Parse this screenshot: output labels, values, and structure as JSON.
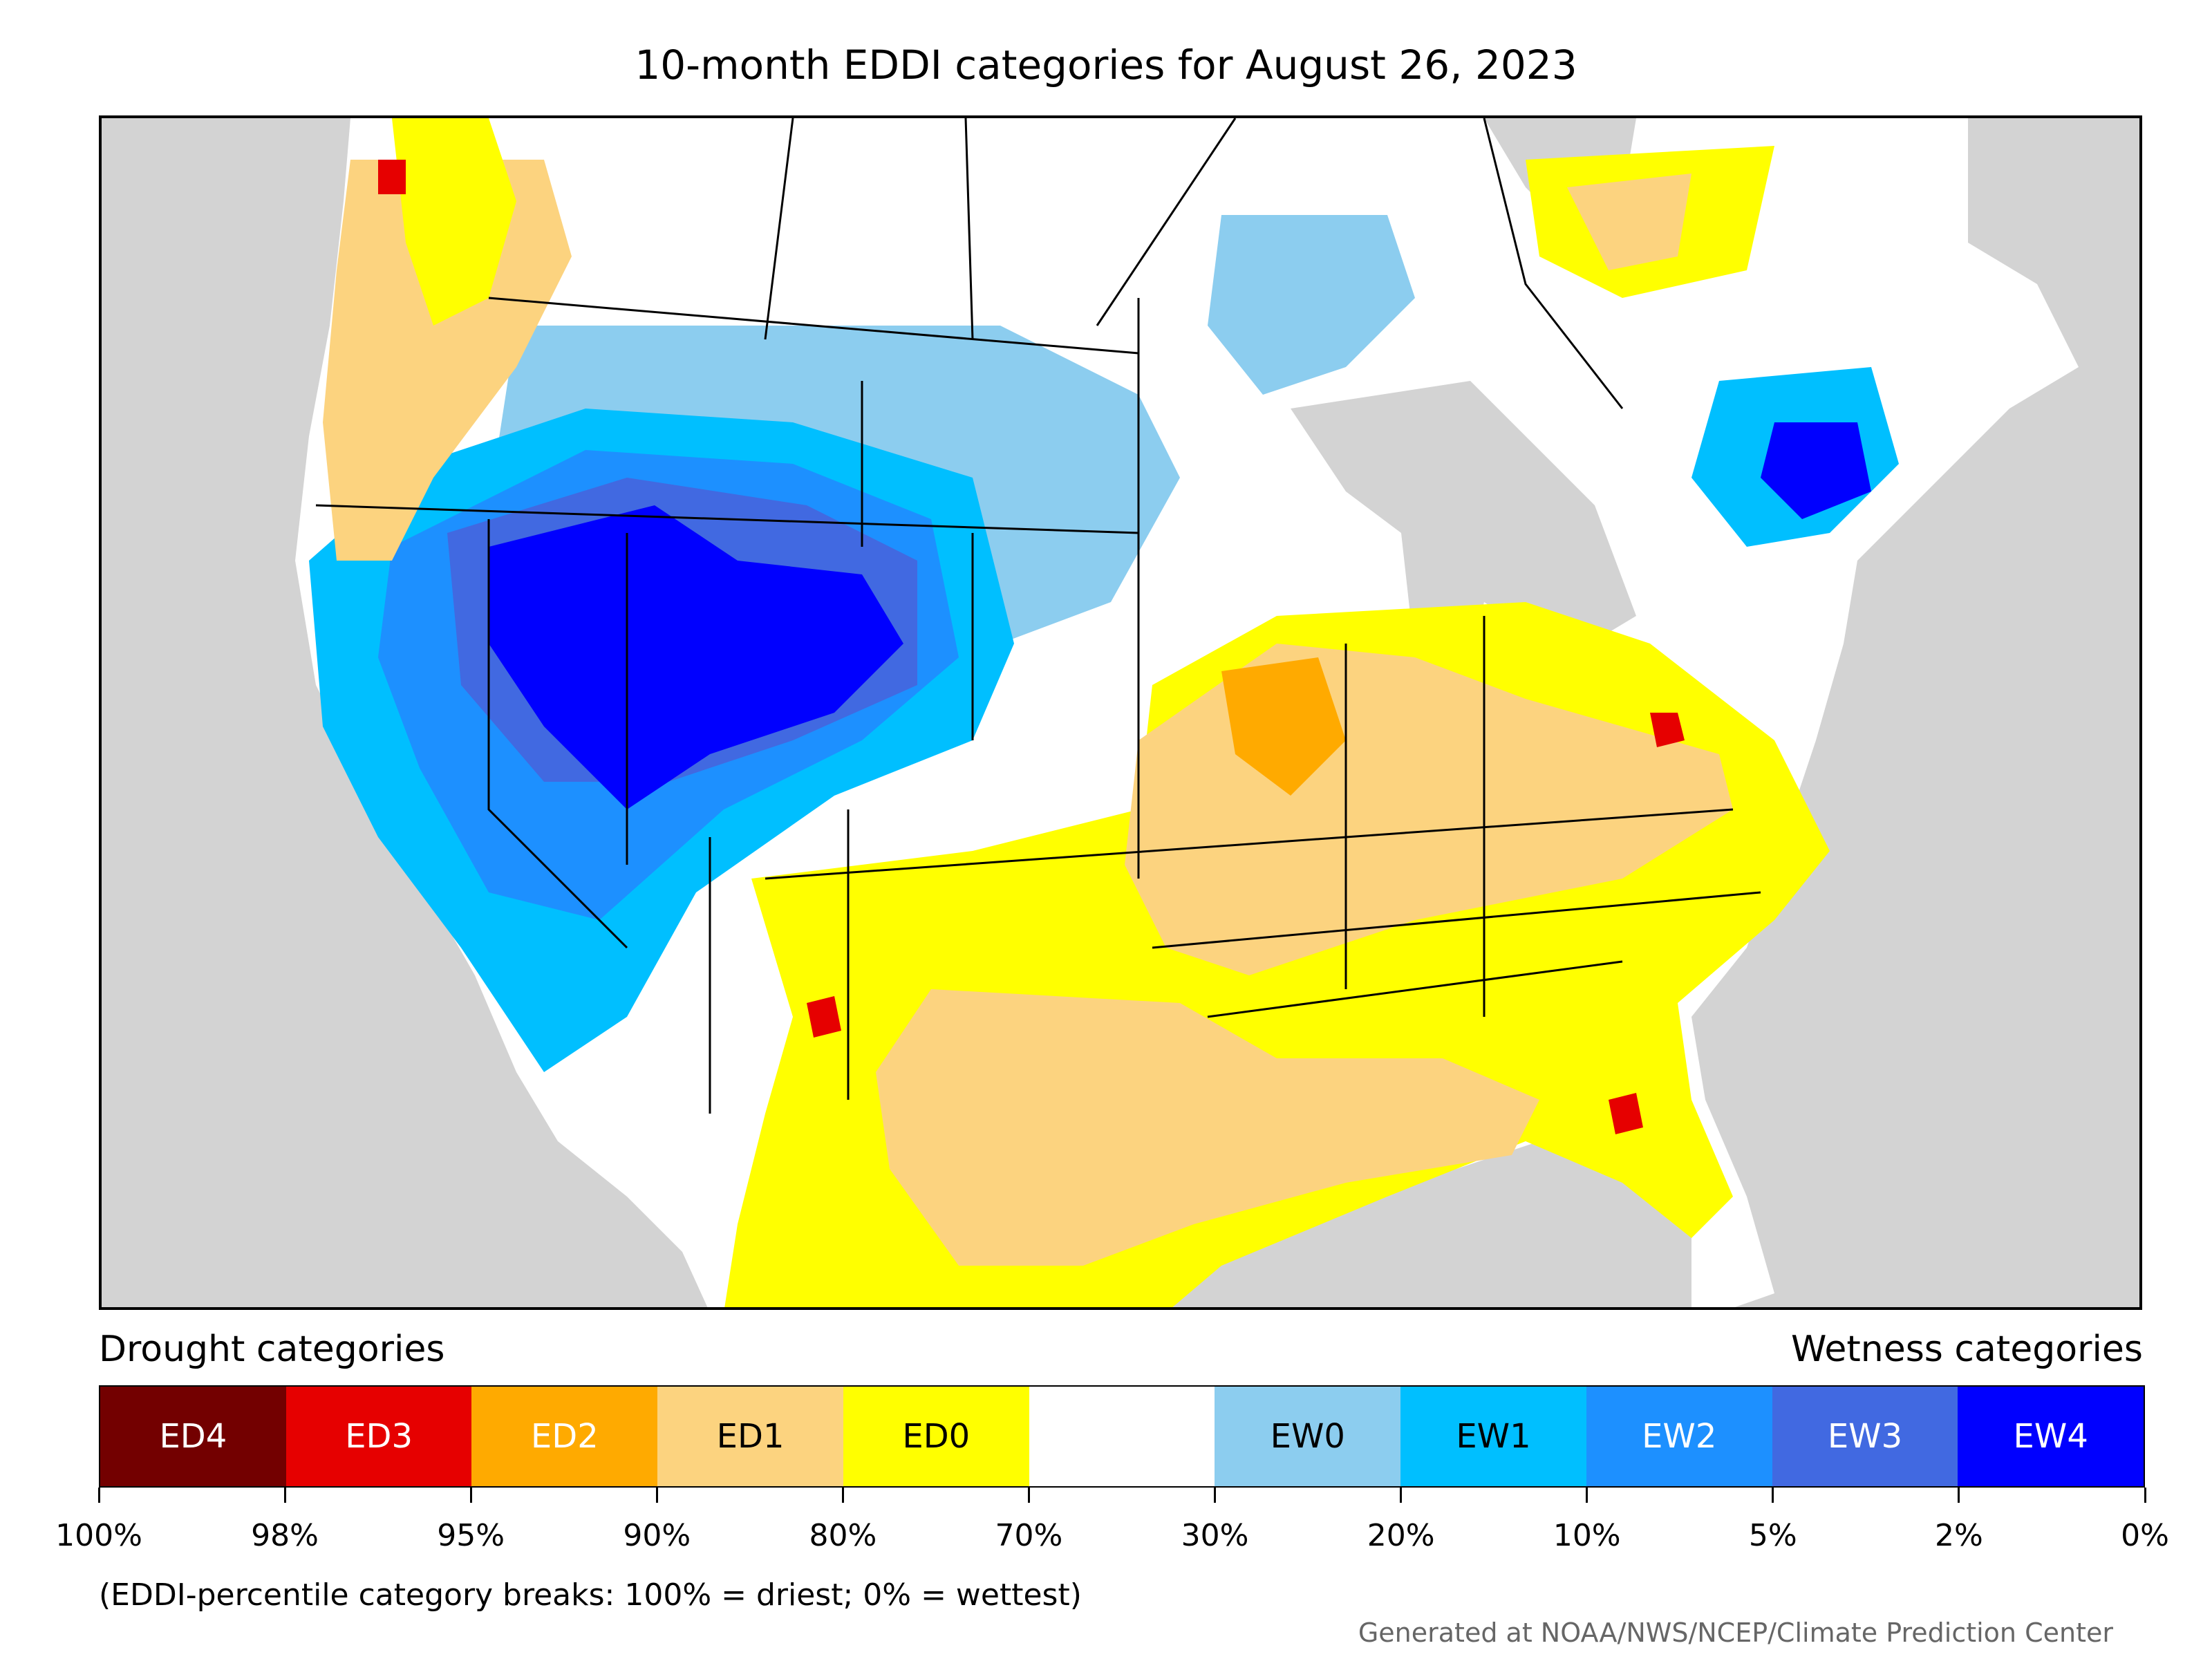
{
  "title": "10-month EDDI categories for August 26, 2023",
  "legend": {
    "drought_label": "Drought categories",
    "wetness_label": "Wetness categories",
    "categories": [
      {
        "label": "ED4",
        "color": "#730000",
        "text_color": "#ffffff"
      },
      {
        "label": "ED3",
        "color": "#e60000",
        "text_color": "#ffffff"
      },
      {
        "label": "ED2",
        "color": "#ffaa00",
        "text_color": "#ffffff"
      },
      {
        "label": "ED1",
        "color": "#fcd37f",
        "text_color": "#000000"
      },
      {
        "label": "ED0",
        "color": "#ffff00",
        "text_color": "#000000"
      },
      {
        "label": "",
        "color": "#ffffff",
        "text_color": "#000000"
      },
      {
        "label": "EW0",
        "color": "#8ccdef",
        "text_color": "#000000"
      },
      {
        "label": "EW1",
        "color": "#00bfff",
        "text_color": "#000000"
      },
      {
        "label": "EW2",
        "color": "#1d90ff",
        "text_color": "#ffffff"
      },
      {
        "label": "EW3",
        "color": "#4169e1",
        "text_color": "#ffffff"
      },
      {
        "label": "EW4",
        "color": "#0000ff",
        "text_color": "#ffffff"
      }
    ],
    "tick_labels": [
      "100%",
      "98%",
      "95%",
      "90%",
      "80%",
      "70%",
      "30%",
      "20%",
      "10%",
      "5%",
      "2%",
      "0%"
    ]
  },
  "note": "(EDDI-percentile category breaks: 100% = driest; 0% = wettest)",
  "credit": "Generated at NOAA/NWS/NCEP/Climate Prediction Center",
  "map": {
    "land_color": "#ffffff",
    "water_color": "#d3d3d3",
    "border_color": "#000000"
  }
}
